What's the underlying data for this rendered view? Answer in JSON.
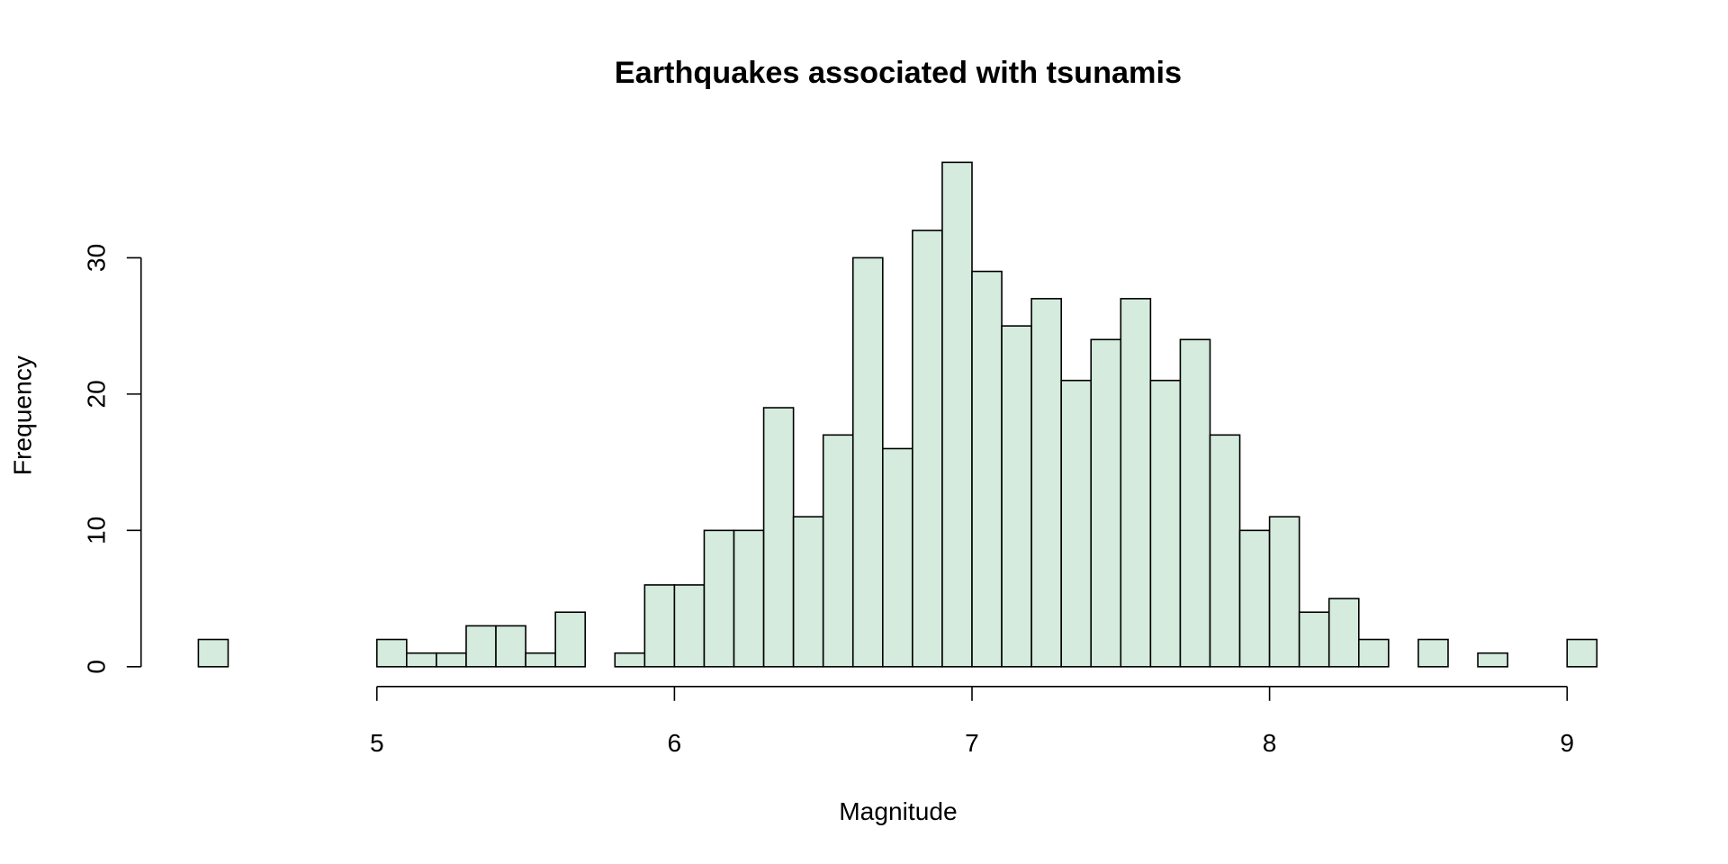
{
  "chart_data": {
    "type": "bar",
    "title": "Earthquakes associated with tsunamis",
    "xlabel": "Magnitude",
    "ylabel": "Frequency",
    "bin_width": 0.1,
    "bin_starts": [
      4.4,
      4.5,
      4.6,
      4.7,
      4.8,
      4.9,
      5.0,
      5.1,
      5.2,
      5.3,
      5.4,
      5.5,
      5.6,
      5.7,
      5.8,
      5.9,
      6.0,
      6.1,
      6.2,
      6.3,
      6.4,
      6.5,
      6.6,
      6.7,
      6.8,
      6.9,
      7.0,
      7.1,
      7.2,
      7.3,
      7.4,
      7.5,
      7.6,
      7.7,
      7.8,
      7.9,
      8.0,
      8.1,
      8.2,
      8.3,
      8.4,
      8.5,
      8.6,
      8.7,
      8.8,
      8.9,
      9.0
    ],
    "values": [
      2,
      0,
      0,
      0,
      0,
      0,
      2,
      1,
      1,
      3,
      3,
      1,
      4,
      0,
      1,
      6,
      6,
      10,
      10,
      19,
      11,
      17,
      30,
      16,
      32,
      37,
      29,
      25,
      27,
      21,
      24,
      27,
      21,
      24,
      17,
      10,
      11,
      4,
      5,
      2,
      0,
      2,
      0,
      1,
      0,
      0,
      2
    ],
    "xticks": [
      "5",
      "6",
      "7",
      "8",
      "9"
    ],
    "xtick_values": [
      5,
      6,
      7,
      8,
      9
    ],
    "yticks": [
      "0",
      "10",
      "20",
      "30"
    ],
    "ytick_values": [
      0,
      10,
      20,
      30
    ],
    "grid": false,
    "bar_color": "#d4ebdd",
    "edge_color": "#000000"
  }
}
